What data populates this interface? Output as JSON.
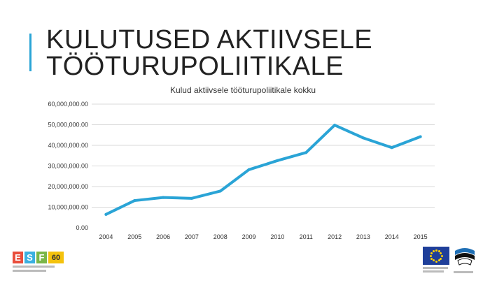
{
  "slide": {
    "title_line1": "KULUTUSED AKTIIVSELE",
    "title_line2": "TÖÖTURUPOLIITIKALE",
    "accent_color": "#2aa4d6"
  },
  "chart_data": {
    "type": "line",
    "title": "Kulud aktiivsele tööturupoliitikale kokku",
    "xlabel": "",
    "ylabel": "",
    "categories": [
      "2004",
      "2005",
      "2006",
      "2007",
      "2008",
      "2009",
      "2010",
      "2011",
      "2012",
      "2013",
      "2014",
      "2015"
    ],
    "series": [
      {
        "values": [
          6500000,
          13200000,
          14700000,
          14300000,
          17800000,
          28200000,
          32600000,
          36500000,
          49800000,
          43600000,
          38900000,
          44200000
        ],
        "color": "#2aa4d6"
      }
    ],
    "ylim": [
      0,
      60000000
    ],
    "yticks": [
      0,
      10000000,
      20000000,
      30000000,
      40000000,
      50000000,
      60000000
    ],
    "ytick_labels": [
      "0.00",
      "10,000,000.00",
      "20,000,000.00",
      "30,000,000.00",
      "40,000,000.00",
      "50,000,000.00",
      "60,000,000.00"
    ],
    "grid": true,
    "legend": "none"
  },
  "logos": {
    "esf_letters": [
      "E",
      "S",
      "F"
    ],
    "esf_badge": "60",
    "esf_colors": [
      "#e94e3c",
      "#3bb0e0",
      "#7ab648"
    ],
    "icons": [
      "esf-logo",
      "eu-flag-logo",
      "estonia-logo"
    ]
  }
}
